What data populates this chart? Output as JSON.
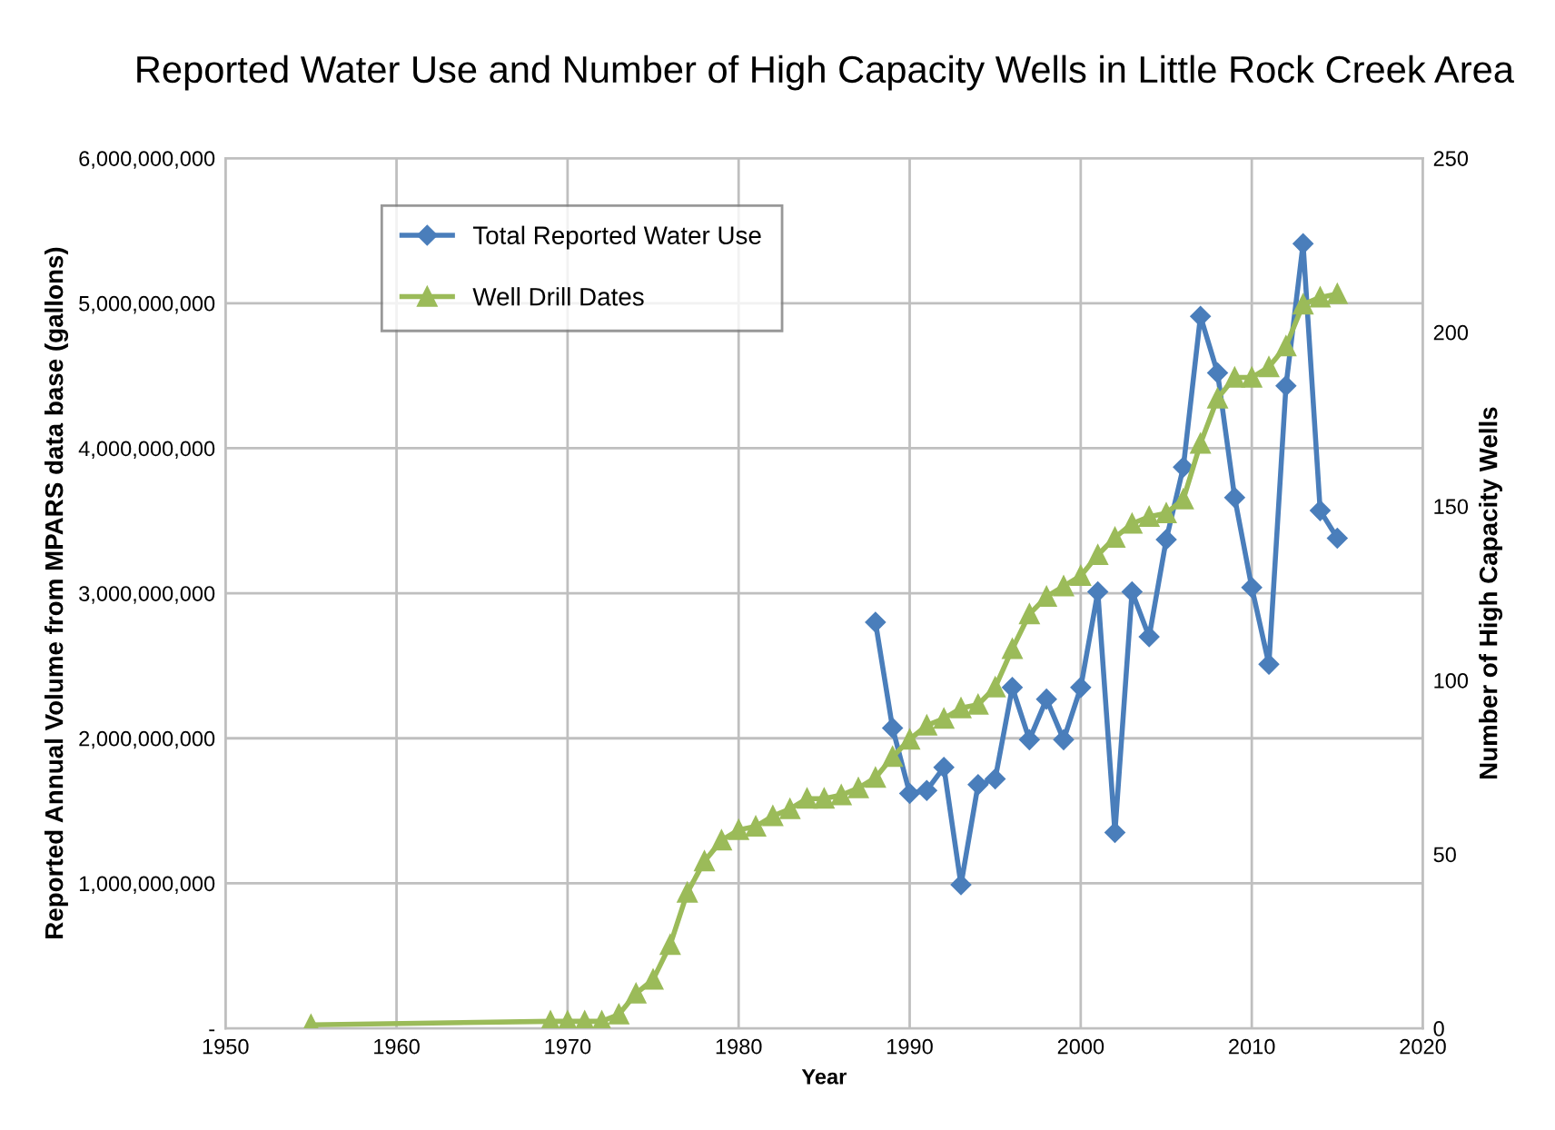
{
  "chart_data": {
    "type": "line",
    "title": "Reported Water Use and Number of High Capacity Wells in Little Rock Creek Area",
    "xlabel": "Year",
    "ylabel": "Reported Annual Volume from MPARS data base (gallons)",
    "y2label": "Number of High Capacity Wells",
    "xlim": [
      1950,
      2020
    ],
    "xticks": [
      1950,
      1960,
      1970,
      1980,
      1990,
      2000,
      2010,
      2020
    ],
    "ylim": [
      0,
      6000000000
    ],
    "yticks": [
      {
        "value": 0,
        "label": "-"
      },
      {
        "value": 1000000000,
        "label": "1,000,000,000"
      },
      {
        "value": 2000000000,
        "label": "2,000,000,000"
      },
      {
        "value": 3000000000,
        "label": "3,000,000,000"
      },
      {
        "value": 4000000000,
        "label": "4,000,000,000"
      },
      {
        "value": 5000000000,
        "label": "5,000,000,000"
      },
      {
        "value": 6000000000,
        "label": "6,000,000,000"
      }
    ],
    "y2lim": [
      0,
      250
    ],
    "y2ticks": [
      0,
      50,
      100,
      150,
      200,
      250
    ],
    "grid": true,
    "legend": "top left",
    "series": [
      {
        "name": "Total Reported Water Use",
        "color": "#4a7ebb",
        "marker": "diamond",
        "x": [
          1988,
          1989,
          1990,
          1991,
          1992,
          1993,
          1994,
          1995,
          1996,
          1997,
          1998,
          1999,
          2000,
          2001,
          2002,
          2003,
          2004,
          2005,
          2006,
          2007,
          2008,
          2009,
          2010,
          2011,
          2012,
          2013,
          2014,
          2015
        ],
        "values": [
          2800000000,
          2070000000,
          1620000000,
          1640000000,
          1800000000,
          990000000,
          1680000000,
          1720000000,
          2350000000,
          1990000000,
          2270000000,
          1990000000,
          2350000000,
          3010000000,
          1350000000,
          3010000000,
          2700000000,
          3370000000,
          3870000000,
          4910000000,
          4520000000,
          3660000000,
          3040000000,
          2510000000,
          4430000000,
          5410000000,
          3570000000,
          3380000000
        ]
      },
      {
        "name": "Well Drill Dates",
        "color": "#9bbb59",
        "marker": "triangle",
        "axis": "y2",
        "x": [
          1955,
          1969,
          1970,
          1971,
          1972,
          1973,
          1974,
          1975,
          1976,
          1977,
          1978,
          1979,
          1980,
          1981,
          1982,
          1983,
          1984,
          1985,
          1986,
          1987,
          1988,
          1989,
          1990,
          1991,
          1992,
          1993,
          1994,
          1995,
          1996,
          1997,
          1998,
          1999,
          2000,
          2001,
          2002,
          2003,
          2004,
          2005,
          2006,
          2007,
          2008,
          2009,
          2010,
          2011,
          2012,
          2013,
          2014,
          2015
        ],
        "values": [
          1,
          2,
          2,
          2,
          2,
          4,
          10,
          14,
          24,
          39,
          48,
          54,
          57,
          58,
          61,
          63,
          66,
          66,
          67,
          69,
          72,
          78,
          83,
          87,
          89,
          92,
          93,
          98,
          109,
          119,
          124,
          127,
          130,
          136,
          141,
          145,
          147,
          148,
          152,
          168,
          181,
          187,
          187,
          190,
          196,
          208,
          210,
          211
        ]
      }
    ]
  }
}
